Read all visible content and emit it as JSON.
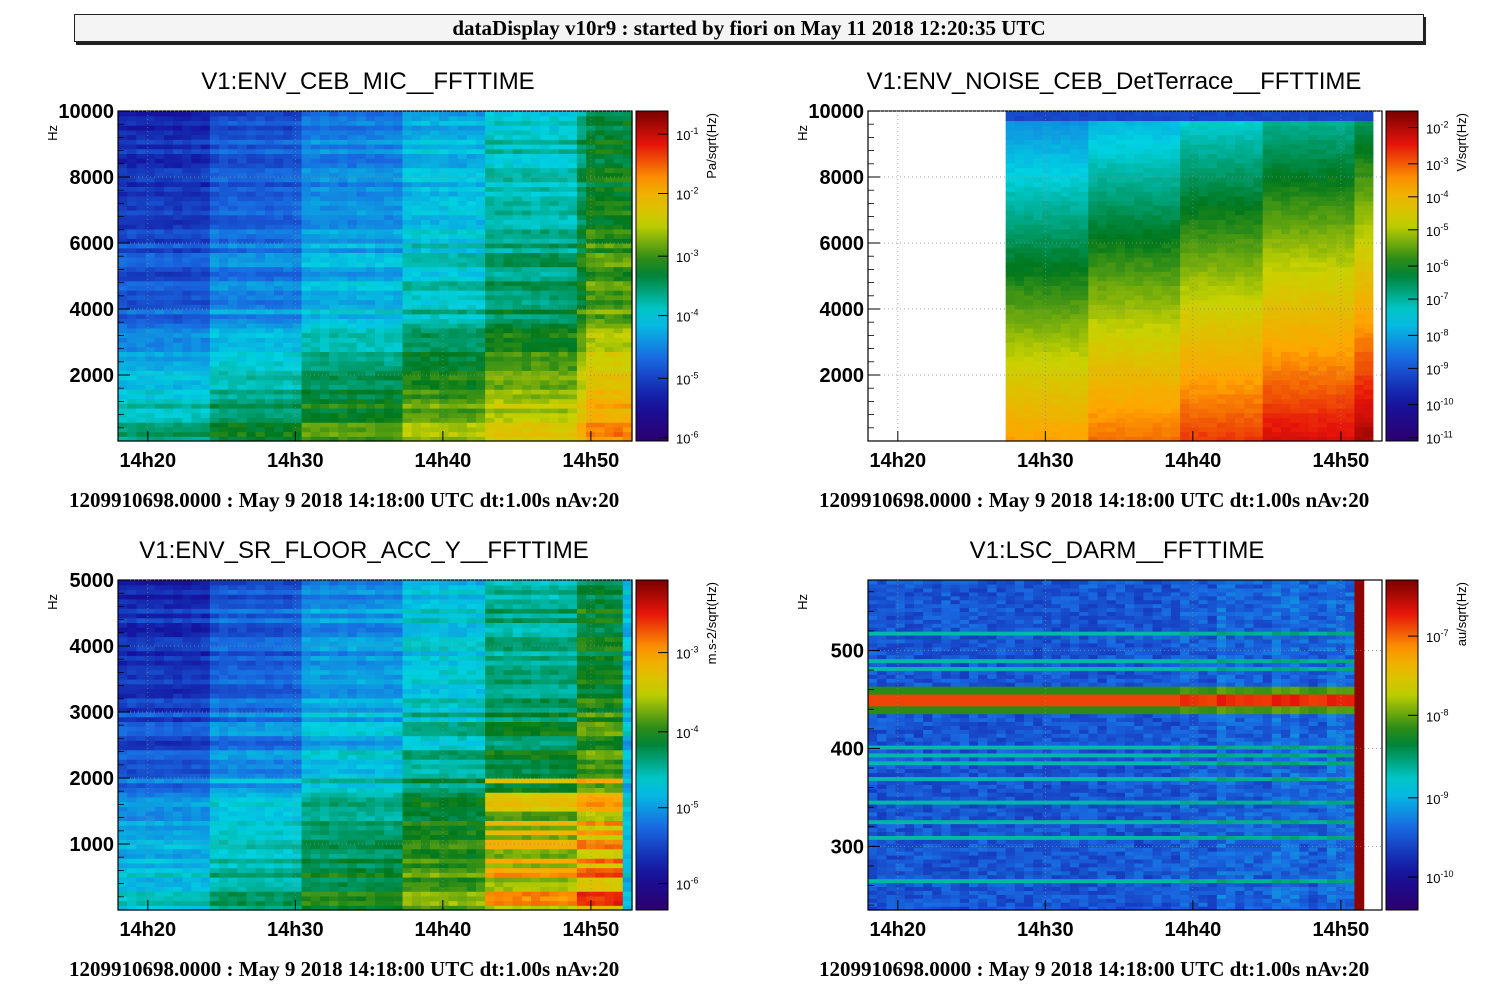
{
  "window": {
    "banner": "dataDisplay v10r9 : started by fiori on May 11 2018 12:20:35 UTC"
  },
  "chart_data": [
    {
      "type": "heatmap",
      "title": "V1:ENV_CEB_MIC__FFTTIME",
      "ylabel": "Hz",
      "colorbar_label": "Pa/sqrt(Hz)",
      "footer": "1209910698.0000 : May  9 2018 14:18:00 UTC dt:1.00s nAv:20",
      "x_ticks": [
        "14h20",
        "14h30",
        "14h40",
        "14h50"
      ],
      "y_ticks": [
        "2000",
        "4000",
        "6000",
        "8000",
        "10000"
      ],
      "y_range": [
        0,
        10000
      ],
      "colorbar_ticks": [
        "10-1",
        "10-2",
        "10-3",
        "10-4",
        "10-5",
        "10-6"
      ],
      "colorbar_range": [
        "1e-6",
        "3e-1"
      ],
      "scale": "log"
    },
    {
      "type": "heatmap",
      "title": "V1:ENV_NOISE_CEB_DetTerrace__FFTTIME",
      "ylabel": "Hz",
      "colorbar_label": "V/sqrt(Hz)",
      "footer": "1209910698.0000 : May  9 2018 14:18:00 UTC dt:1.00s nAv:20",
      "x_ticks": [
        "14h20",
        "14h30",
        "14h40",
        "14h50"
      ],
      "y_ticks": [
        "2000",
        "4000",
        "6000",
        "8000",
        "10000"
      ],
      "y_range": [
        0,
        10000
      ],
      "colorbar_ticks": [
        "10-2",
        "10-3",
        "10-4",
        "10-5",
        "10-6",
        "10-7",
        "10-8",
        "10-9",
        "10-10",
        "10-11"
      ],
      "colorbar_range": [
        "1e-11",
        "3e-2"
      ],
      "scale": "log"
    },
    {
      "type": "heatmap",
      "title": "V1:ENV_SR_FLOOR_ACC_Y__FFTTIME",
      "ylabel": "Hz",
      "colorbar_label": "m.s-2/sqrt(Hz)",
      "footer": "1209910698.0000 : May  9 2018 14:18:00 UTC dt:1.00s nAv:20",
      "x_ticks": [
        "14h20",
        "14h30",
        "14h40",
        "14h50"
      ],
      "y_ticks": [
        "1000",
        "2000",
        "3000",
        "4000",
        "5000"
      ],
      "y_range": [
        0,
        5000
      ],
      "colorbar_ticks": [
        "10-3",
        "10-4",
        "10-5",
        "10-6"
      ],
      "colorbar_range": [
        "5e-7",
        "8e-3"
      ],
      "scale": "log"
    },
    {
      "type": "heatmap",
      "title": "V1:LSC_DARM__FFTTIME",
      "ylabel": "Hz",
      "colorbar_label": "au/sqrt(Hz)",
      "footer": "1209910698.0000 : May  9 2018 14:18:00 UTC dt:1.00s nAv:20",
      "x_ticks": [
        "14h20",
        "14h30",
        "14h40",
        "14h50"
      ],
      "y_ticks": [
        "300",
        "400",
        "500"
      ],
      "y_range": [
        235,
        572
      ],
      "colorbar_ticks": [
        "10-7",
        "10-8",
        "10-9",
        "10-10"
      ],
      "colorbar_range": [
        "5e-11",
        "5e-7"
      ],
      "scale": "log"
    }
  ]
}
